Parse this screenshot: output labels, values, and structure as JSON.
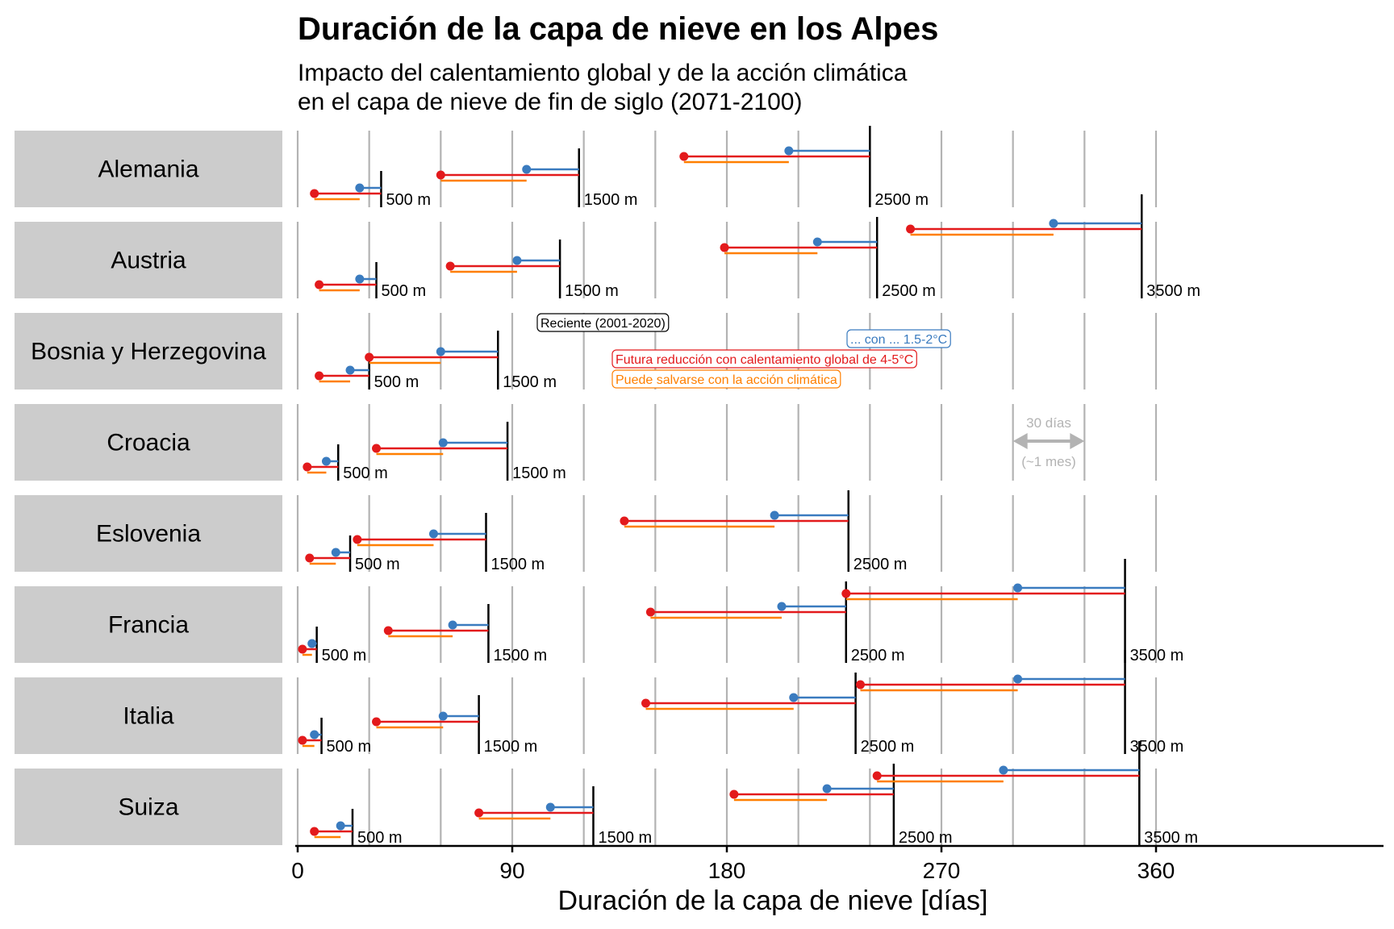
{
  "chart_data": {
    "type": "dumbbell",
    "title": "Duración de la capa de nieve en los Alpes",
    "subtitle_lines": [
      "Impacto del calentamiento global y de la acción climática",
      "en el capa de nieve de fin de siglo (2071-2100)"
    ],
    "xlabel": "Duración de la capa de nieve [días]",
    "xlim": [
      0,
      380
    ],
    "xticks": [
      0,
      90,
      180,
      270,
      360
    ],
    "grid": true,
    "colors": {
      "recent": "#000000",
      "warming_4_5": "#e31a1c",
      "warming_1_5_2": "#3a7bbf",
      "saved": "#ff7f00",
      "grid": "#b3b3b3",
      "strip": "#cccccc",
      "scale": "#b3b3b3"
    },
    "legend": {
      "recent": "Reciente (2001-2020)",
      "warming_1_5_2": "... con ... 1.5-2°C",
      "warming_4_5": "Futura reducción con calentamiento global de 4-5°C",
      "saved": "Puede salvarse con la acción climática"
    },
    "scale_bar": {
      "days": 30,
      "label_top": "30 días",
      "label_bottom": "(~1 mes)"
    },
    "panels": [
      {
        "country": "Alemania",
        "rows": [
          {
            "altitude": "500 m",
            "recent": 35,
            "warming_1_5_2": 26,
            "warming_4_5": 7
          },
          {
            "altitude": "1500 m",
            "recent": 118,
            "warming_1_5_2": 96,
            "warming_4_5": 60
          },
          {
            "altitude": "2500 m",
            "recent": 240,
            "warming_1_5_2": 206,
            "warming_4_5": 162
          }
        ]
      },
      {
        "country": "Austria",
        "rows": [
          {
            "altitude": "500 m",
            "recent": 33,
            "warming_1_5_2": 26,
            "warming_4_5": 9
          },
          {
            "altitude": "1500 m",
            "recent": 110,
            "warming_1_5_2": 92,
            "warming_4_5": 64
          },
          {
            "altitude": "2500 m",
            "recent": 243,
            "warming_1_5_2": 218,
            "warming_4_5": 179
          },
          {
            "altitude": "3500 m",
            "recent": 354,
            "warming_1_5_2": 317,
            "warming_4_5": 257
          }
        ]
      },
      {
        "country": "Bosnia y Herzegovina",
        "rows": [
          {
            "altitude": "500 m",
            "recent": 30,
            "warming_1_5_2": 22,
            "warming_4_5": 9
          },
          {
            "altitude": "1500 m",
            "recent": 84,
            "warming_1_5_2": 60,
            "warming_4_5": 30
          }
        ]
      },
      {
        "country": "Croacia",
        "rows": [
          {
            "altitude": "500 m",
            "recent": 17,
            "warming_1_5_2": 12,
            "warming_4_5": 4
          },
          {
            "altitude": "1500 m",
            "recent": 88,
            "warming_1_5_2": 61,
            "warming_4_5": 33
          }
        ]
      },
      {
        "country": "Eslovenia",
        "rows": [
          {
            "altitude": "500 m",
            "recent": 22,
            "warming_1_5_2": 16,
            "warming_4_5": 5
          },
          {
            "altitude": "1500 m",
            "recent": 79,
            "warming_1_5_2": 57,
            "warming_4_5": 25
          },
          {
            "altitude": "2500 m",
            "recent": 231,
            "warming_1_5_2": 200,
            "warming_4_5": 137
          }
        ]
      },
      {
        "country": "Francia",
        "rows": [
          {
            "altitude": "500 m",
            "recent": 8,
            "warming_1_5_2": 6,
            "warming_4_5": 2
          },
          {
            "altitude": "1500 m",
            "recent": 80,
            "warming_1_5_2": 65,
            "warming_4_5": 38
          },
          {
            "altitude": "2500 m",
            "recent": 230,
            "warming_1_5_2": 203,
            "warming_4_5": 148
          },
          {
            "altitude": "3500 m",
            "recent": 347,
            "warming_1_5_2": 302,
            "warming_4_5": 230
          }
        ]
      },
      {
        "country": "Italia",
        "rows": [
          {
            "altitude": "500 m",
            "recent": 10,
            "warming_1_5_2": 7,
            "warming_4_5": 2
          },
          {
            "altitude": "1500 m",
            "recent": 76,
            "warming_1_5_2": 61,
            "warming_4_5": 33
          },
          {
            "altitude": "2500 m",
            "recent": 234,
            "warming_1_5_2": 208,
            "warming_4_5": 146
          },
          {
            "altitude": "3500 m",
            "recent": 347,
            "warming_1_5_2": 302,
            "warming_4_5": 236
          }
        ]
      },
      {
        "country": "Suiza",
        "rows": [
          {
            "altitude": "500 m",
            "recent": 23,
            "warming_1_5_2": 18,
            "warming_4_5": 7
          },
          {
            "altitude": "1500 m",
            "recent": 124,
            "warming_1_5_2": 106,
            "warming_4_5": 76
          },
          {
            "altitude": "2500 m",
            "recent": 250,
            "warming_1_5_2": 222,
            "warming_4_5": 183
          },
          {
            "altitude": "3500 m",
            "recent": 353,
            "warming_1_5_2": 296,
            "warming_4_5": 243
          }
        ]
      }
    ]
  }
}
